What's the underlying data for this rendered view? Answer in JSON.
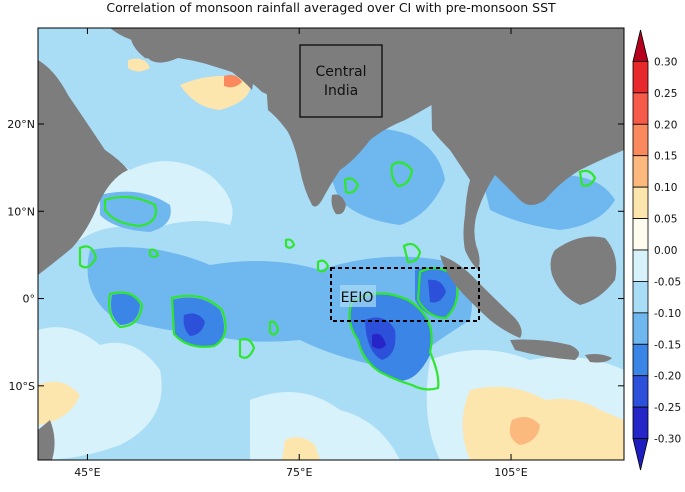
{
  "title": "Correlation of monsoon rainfall averaged over CI with pre-monsoon SST",
  "colors": {
    "land": "#7d7d7d",
    "highlight_contour": "#2ee62e",
    "frame": "#000000"
  },
  "map": {
    "lon_range": [
      38,
      121
    ],
    "lat_range": [
      -18.5,
      31
    ],
    "x_ticks": [
      {
        "value": 45,
        "label": "45°E"
      },
      {
        "value": 75,
        "label": "75°E"
      },
      {
        "value": 105,
        "label": "105°E"
      }
    ],
    "y_ticks": [
      {
        "value": 20,
        "label": "20°N"
      },
      {
        "value": 10,
        "label": "10°N"
      },
      {
        "value": 0,
        "label": "0°"
      },
      {
        "value": -10,
        "label": "10°S"
      }
    ],
    "boxes": {
      "central_india": {
        "line1": "Central",
        "line2": "India"
      },
      "eeio": {
        "label": "EEIO"
      }
    }
  },
  "colorbar": {
    "labels": [
      "0.30",
      "0.25",
      "0.20",
      "0.15",
      "0.10",
      "0.05",
      "0.00",
      "-0.05",
      "-0.10",
      "-0.15",
      "-0.20",
      "-0.25",
      "-0.30"
    ],
    "colors": [
      "#b5001e",
      "#e7282d",
      "#f65a4a",
      "#fa8a5e",
      "#fcb97d",
      "#fde5ae",
      "#fefcef",
      "#d7f2fb",
      "#a9dcf5",
      "#6fb7ef",
      "#3a85e6",
      "#2d50da",
      "#2626c8",
      "#1e1ec0"
    ]
  }
}
